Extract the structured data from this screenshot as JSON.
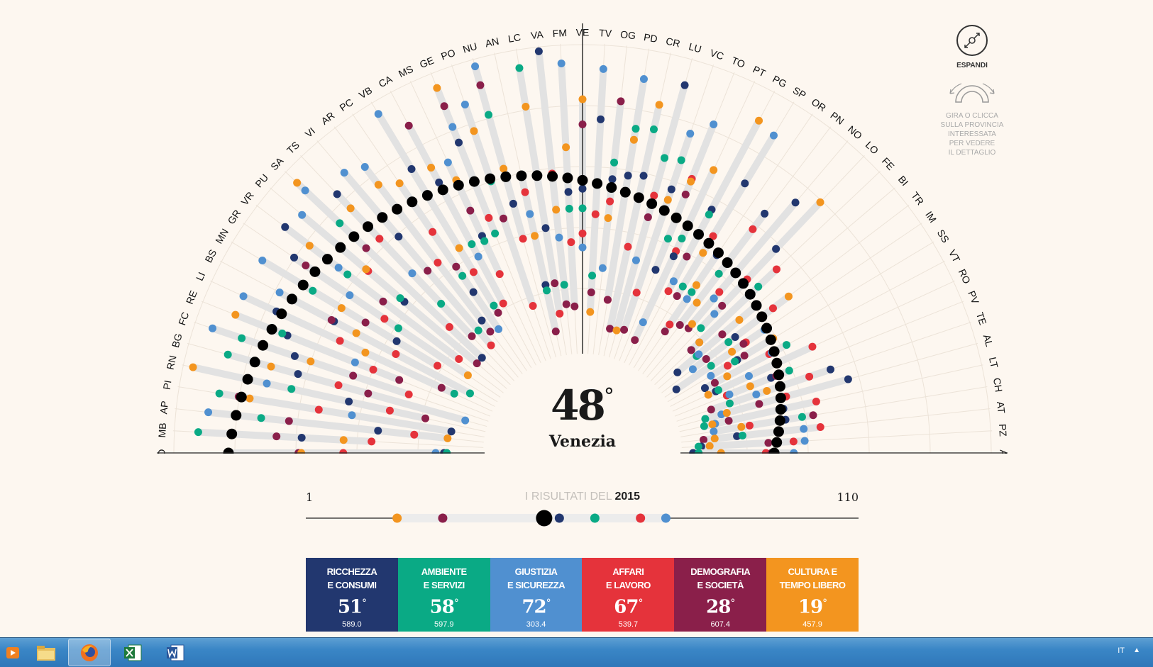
{
  "selected": {
    "province": "Venezia",
    "abbr": "VE",
    "rank": "48",
    "degree": "°"
  },
  "expand": {
    "label": "ESPANDI",
    "icon": "expand-arrows-icon"
  },
  "hint": {
    "lines": [
      "GIRA O CLICCA",
      "SULLA PROVINCIA",
      "INTERESSATA",
      "PER VEDERE",
      "IL DETTAGLIO"
    ],
    "icon": "rotate-arc-icon"
  },
  "slider": {
    "min_label": "1",
    "max_label": "110",
    "title_prefix": "I RISULTATI DEL",
    "year": "2015",
    "ranks": {
      "overall": 48,
      "ricchezza": 51,
      "ambiente": 58,
      "giustizia": 72,
      "affari": 67,
      "demografia": 28,
      "cultura": 19
    }
  },
  "cards": [
    {
      "key": "ricchezza",
      "title": "RICCHEZZA\nE CONSUMI",
      "rank": "51",
      "value": "589.0",
      "color": "#22376f"
    },
    {
      "key": "ambiente",
      "title": "AMBIENTE\nE SERVIZI",
      "rank": "58",
      "value": "597.9",
      "color": "#0aaa85"
    },
    {
      "key": "giustizia",
      "title": "GIUSTIZIA\nE SICUREZZA",
      "rank": "72",
      "value": "303.4",
      "color": "#5090d0"
    },
    {
      "key": "affari",
      "title": "AFFARI\nE LAVORO",
      "rank": "67",
      "value": "539.7",
      "color": "#e5333b"
    },
    {
      "key": "demografia",
      "title": "DEMOGRAFIA\nE SOCIETÀ",
      "rank": "28",
      "value": "607.4",
      "color": "#8a1f4a"
    },
    {
      "key": "cultura",
      "title": "CULTURA E\nTEMPO LIBERO",
      "rank": "19",
      "value": "457.9",
      "color": "#f3951f"
    }
  ],
  "colors": {
    "overall": "#000000",
    "ricchezza": "#22376f",
    "ambiente": "#0aaa85",
    "giustizia": "#5090d0",
    "affari": "#e5333b",
    "demografia": "#8a1f4a",
    "cultura": "#f3951f",
    "background": "#fdf7f0"
  },
  "chart_data": {
    "type": "radial-dot",
    "rank_range": [
      1,
      110
    ],
    "series_order": [
      "ricchezza",
      "ambiente",
      "giustizia",
      "affari",
      "demografia",
      "cultura"
    ],
    "provinces": [
      "O",
      "MB",
      "AP",
      "PI",
      "RN",
      "BG",
      "FC",
      "RE",
      "LI",
      "BS",
      "MN",
      "GR",
      "VR",
      "PU",
      "SA",
      "TS",
      "VI",
      "AR",
      "PC",
      "VB",
      "CA",
      "MS",
      "GE",
      "PO",
      "NU",
      "AN",
      "LC",
      "VA",
      "FM",
      "VE",
      "TV",
      "OG",
      "PD",
      "CR",
      "LU",
      "VC",
      "TO",
      "PT",
      "PG",
      "SP",
      "OR",
      "PN",
      "NO",
      "LO",
      "FE",
      "BI",
      "TR",
      "IM",
      "SS",
      "VT",
      "RO",
      "PV",
      "TE",
      "AL",
      "LT",
      "CH",
      "AT",
      "PZ",
      "A"
    ],
    "overall_ranks": [
      19,
      20,
      21,
      22,
      23,
      24,
      25,
      26,
      27,
      28,
      29,
      30,
      31,
      32,
      33,
      34,
      35,
      36,
      37,
      38,
      39,
      40,
      41,
      42,
      43,
      44,
      45,
      46,
      47,
      48,
      49,
      50,
      51,
      52,
      53,
      54,
      55,
      56,
      57,
      58,
      59,
      60,
      61,
      62,
      63,
      64,
      65,
      66,
      67,
      68,
      69,
      70,
      71,
      72,
      73,
      74,
      75,
      76,
      77
    ],
    "category_ranks": [
      [
        96,
        97,
        93,
        60,
        44,
        45
      ],
      [
        45,
        8,
        20,
        70,
        36,
        60
      ],
      [
        72,
        30,
        11,
        85,
        40,
        97
      ],
      [
        98,
        14,
        62,
        50,
        21,
        25
      ],
      [
        60,
        39,
        30,
        75,
        88,
        3
      ],
      [
        40,
        14,
        102,
        55,
        66,
        30
      ],
      [
        37,
        17,
        6,
        80,
        59,
        43
      ],
      [
        32,
        30,
        58,
        65,
        75,
        12
      ],
      [
        25,
        95,
        12,
        50,
        90,
        60
      ],
      [
        45,
        100,
        23,
        70,
        44,
        54
      ],
      [
        68,
        33,
        12,
        85,
        55,
        45
      ],
      [
        21,
        66,
        45,
        60,
        26,
        96
      ],
      [
        12,
        40,
        36,
        90,
        56,
        23
      ],
      [
        62,
        60,
        14,
        45,
        96,
        44
      ],
      [
        96,
        26,
        9,
        80,
        39,
        5
      ],
      [
        18,
        72,
        57,
        40,
        88,
        25
      ],
      [
        44,
        88,
        14,
        95,
        60,
        35
      ],
      [
        86,
        36,
        17,
        60,
        91,
        25
      ],
      [
        76,
        69,
        92,
        50,
        65,
        29
      ],
      [
        27,
        84,
        4,
        70,
        87,
        60
      ],
      [
        36,
        61,
        66,
        85,
        13,
        30
      ],
      [
        60,
        62,
        31,
        75,
        50,
        38
      ],
      [
        26,
        61,
        20,
        55,
        12,
        5
      ],
      [
        42,
        43,
        14,
        90,
        57,
        24
      ],
      [
        53,
        20,
        2,
        66,
        9,
        40
      ],
      [
        84,
        86,
        58,
        50,
        101,
        66
      ],
      [
        64,
        6,
        45,
        95,
        84,
        20
      ],
      [
        1,
        85,
        68,
        45,
        92,
        58
      ],
      [
        52,
        58,
        6,
        70,
        93,
        36
      ],
      [
        51,
        58,
        72,
        67,
        28,
        19
      ],
      [
        26,
        82,
        8,
        60,
        88,
        95
      ],
      [
        47,
        41,
        79,
        55,
        19,
        61
      ],
      [
        45,
        28,
        10,
        90,
        90,
        32
      ],
      [
        44,
        27,
        52,
        70,
        100,
        18
      ],
      [
        9,
        36,
        74,
        50,
        58,
        100
      ],
      [
        46,
        35,
        25,
        85,
        99,
        50
      ],
      [
        75,
        63,
        19,
        40,
        46,
        41
      ],
      [
        68,
        61,
        94,
        66,
        101,
        34
      ],
      [
        47,
        49,
        76,
        80,
        66,
        11
      ],
      [
        33,
        76,
        13,
        55,
        80,
        62
      ],
      [
        60,
        76,
        79,
        90,
        93,
        73
      ],
      [
        38,
        65,
        60,
        45,
        88,
        78
      ],
      [
        28,
        73,
        73,
        70,
        87,
        85
      ],
      [
        45,
        84,
        77,
        60,
        73,
        22
      ],
      [
        92,
        59,
        88,
        50,
        92,
        88
      ],
      [
        101,
        92,
        91,
        80,
        80,
        72
      ],
      [
        77,
        80,
        96,
        60,
        90,
        53
      ],
      [
        105,
        90,
        67,
        75,
        76,
        81
      ],
      [
        81,
        82,
        92,
        85,
        78,
        66
      ],
      [
        96,
        63,
        69,
        70,
        92,
        87
      ],
      [
        93,
        92,
        80,
        55,
        69,
        96
      ],
      [
        73,
        66,
        89,
        90,
        71,
        81
      ],
      [
        52,
        90,
        80,
        60,
        97,
        76
      ],
      [
        47,
        100,
        94,
        70,
        80,
        92
      ],
      [
        72,
        101,
        97,
        60,
        92,
        98
      ],
      [
        72,
        66,
        98,
        85,
        62,
        88
      ],
      [
        90,
        88,
        66,
        60,
        102,
        98
      ],
      [
        103,
        104,
        66,
        70,
        79,
        100
      ],
      [
        106,
        104,
        70,
        80,
        78,
        96
      ]
    ]
  },
  "taskbar": {
    "items": [
      {
        "name": "media-player"
      },
      {
        "name": "file-explorer"
      },
      {
        "name": "firefox",
        "active": true
      },
      {
        "name": "excel"
      },
      {
        "name": "word"
      }
    ],
    "language": "IT",
    "tray_arrow": "▲"
  }
}
